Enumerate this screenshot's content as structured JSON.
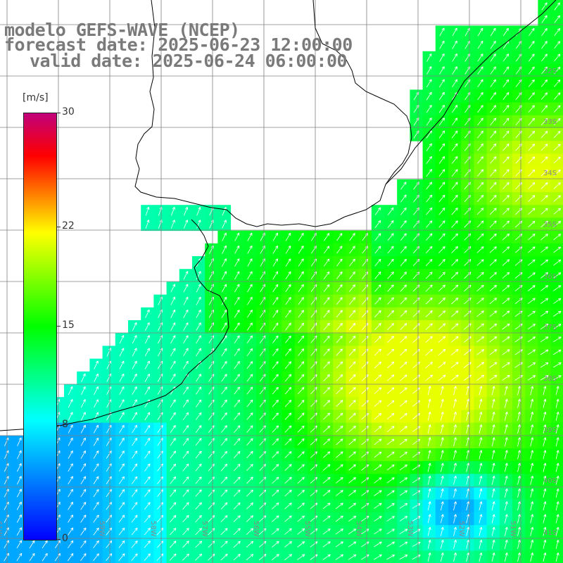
{
  "title": {
    "line1": "modelo GEFS-WAVE (NCEP)",
    "line2": "forecast date: 2025-06-23 12:00:00",
    "line3": "valid date: 2025-06-24 06:00:00"
  },
  "colorbar": {
    "unit": "[m/s]",
    "ticks": [
      "0",
      "8",
      "15",
      "22",
      "30"
    ],
    "range": [
      0,
      30
    ],
    "colors": [
      "#0000ff",
      "#00ffff",
      "#00ff00",
      "#ffff00",
      "#ff0000",
      "#c0007a"
    ]
  },
  "lat_labels": [
    "32S",
    "33S",
    "34S",
    "35S",
    "36S",
    "37S",
    "38S",
    "39S",
    "40S",
    "41S"
  ],
  "lon_labels": [
    "61W",
    "60W",
    "59W",
    "58W",
    "57W",
    "56W",
    "55W",
    "54W",
    "53W",
    "52W",
    "51W"
  ],
  "colors": {
    "land": "#ffffff",
    "grid": "#808080",
    "coast": "#000000",
    "arrow": "#ffffff",
    "title_text": "#7a7a7a"
  }
}
